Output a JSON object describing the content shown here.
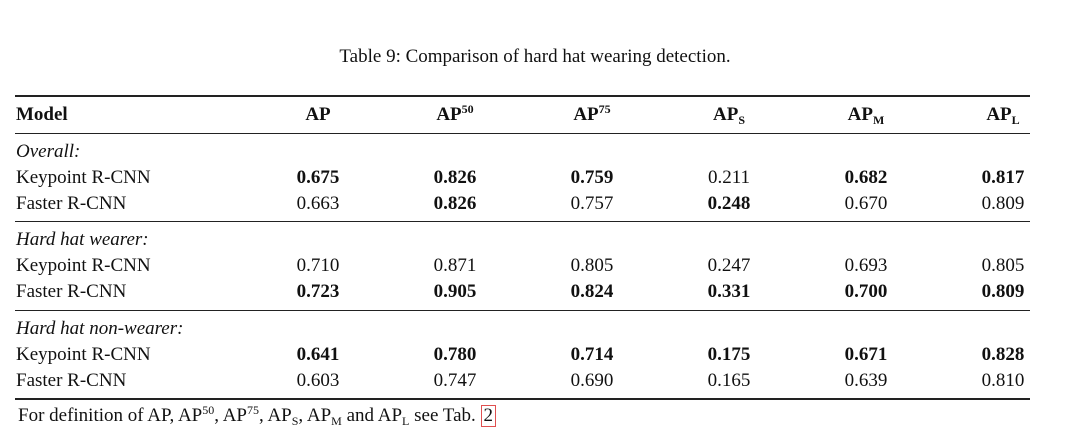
{
  "caption": "Table 9: Comparison of hard hat wearing detection.",
  "header": {
    "model": "Model",
    "ap": "AP",
    "ap50": {
      "base": "AP",
      "sup": "50"
    },
    "ap75": {
      "base": "AP",
      "sup": "75"
    },
    "aps": {
      "base": "AP",
      "sub": "S"
    },
    "apm": {
      "base": "AP",
      "sub": "M"
    },
    "apl": {
      "base": "AP",
      "sub": "L"
    }
  },
  "sections": [
    {
      "title": "Overall:",
      "rows": [
        {
          "model": "Keypoint R-CNN",
          "values": [
            "0.675",
            "0.826",
            "0.759",
            "0.211",
            "0.682",
            "0.817"
          ],
          "bold": [
            true,
            true,
            true,
            false,
            true,
            true
          ]
        },
        {
          "model": "Faster R-CNN",
          "values": [
            "0.663",
            "0.826",
            "0.757",
            "0.248",
            "0.670",
            "0.809"
          ],
          "bold": [
            false,
            true,
            false,
            true,
            false,
            false
          ]
        }
      ]
    },
    {
      "title": "Hard hat wearer:",
      "rows": [
        {
          "model": "Keypoint R-CNN",
          "values": [
            "0.710",
            "0.871",
            "0.805",
            "0.247",
            "0.693",
            "0.805"
          ],
          "bold": [
            false,
            false,
            false,
            false,
            false,
            false
          ]
        },
        {
          "model": "Faster R-CNN",
          "values": [
            "0.723",
            "0.905",
            "0.824",
            "0.331",
            "0.700",
            "0.809"
          ],
          "bold": [
            true,
            true,
            true,
            true,
            true,
            true
          ]
        }
      ]
    },
    {
      "title": "Hard hat non-wearer:",
      "rows": [
        {
          "model": "Keypoint R-CNN",
          "values": [
            "0.641",
            "0.780",
            "0.714",
            "0.175",
            "0.671",
            "0.828"
          ],
          "bold": [
            true,
            true,
            true,
            true,
            true,
            true
          ]
        },
        {
          "model": "Faster R-CNN",
          "values": [
            "0.603",
            "0.747",
            "0.690",
            "0.165",
            "0.639",
            "0.810"
          ],
          "bold": [
            false,
            false,
            false,
            false,
            false,
            false
          ]
        }
      ]
    }
  ],
  "footnote": {
    "t1": "For definition of AP, ",
    "t2": ", ",
    "t3": ", ",
    "t4": ", ",
    "t5": " and ",
    "t6": " see Tab. ",
    "ref": "2",
    "ap": "AP",
    "sup50": "50",
    "sup75": "75",
    "subS": "S",
    "subM": "M",
    "subL": "L"
  }
}
